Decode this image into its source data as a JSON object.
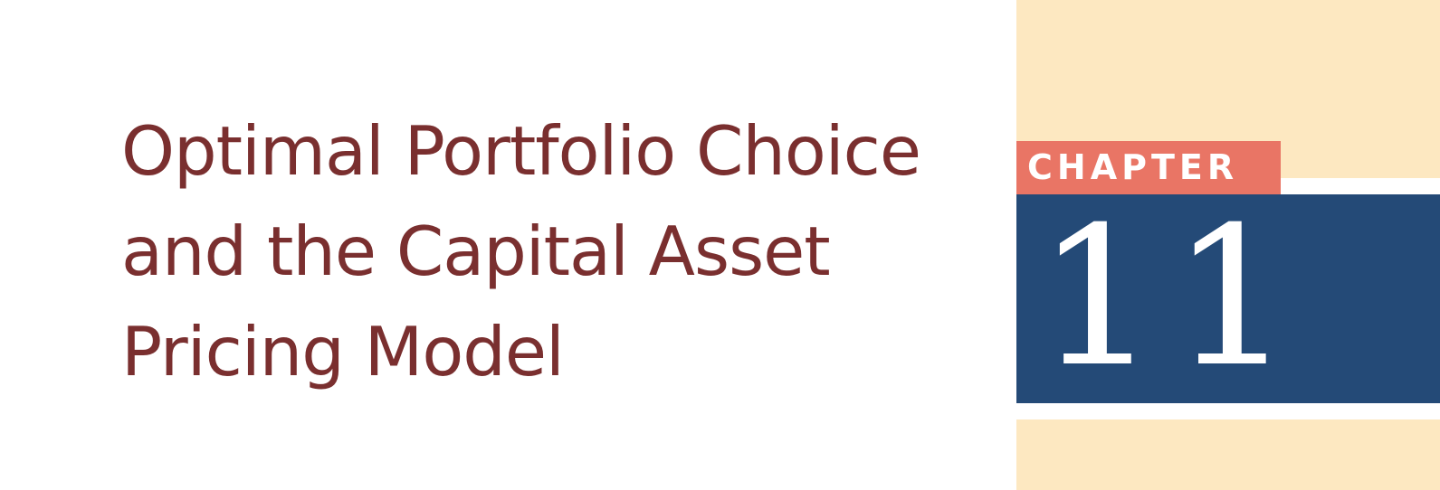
{
  "title_lines": [
    "Optimal Portfolio Choice",
    "and the Capital Asset",
    "Pricing Model"
  ],
  "chapter": {
    "label": "CHAPTER",
    "number": "11"
  },
  "colors": {
    "title_text": "#7a2f2f",
    "cream_band": "#fde8c1",
    "chapter_tab": "#e97565",
    "number_block": "#244a77",
    "white_text": "#ffffff"
  }
}
